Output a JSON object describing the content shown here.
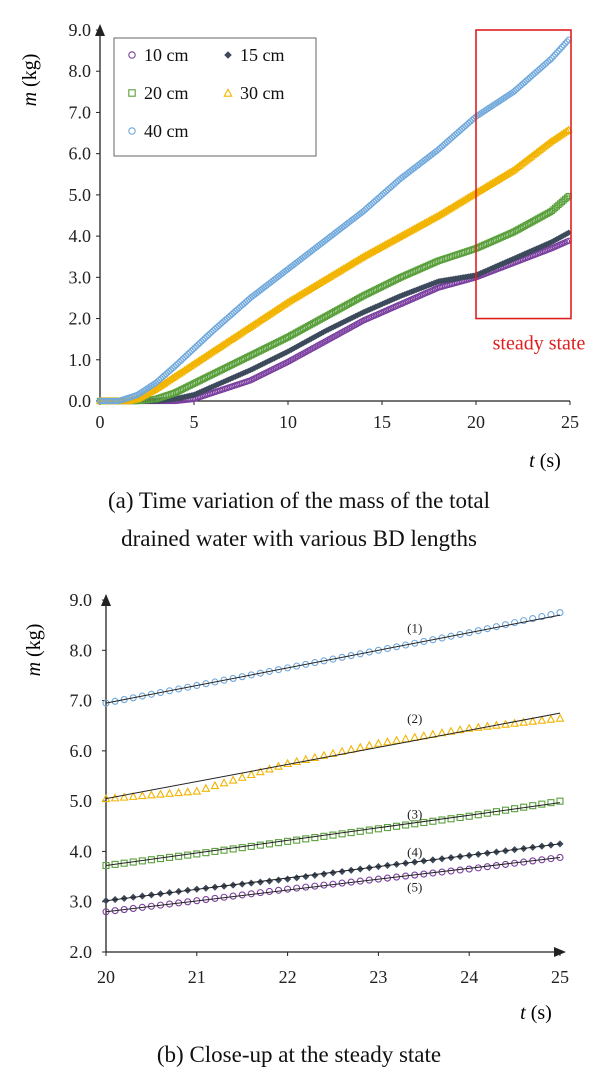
{
  "chart_data": [
    {
      "type": "scatter",
      "panel": "a",
      "xlabel": "t (s)",
      "ylabel": "m (kg)",
      "xlim": [
        0,
        25
      ],
      "ylim": [
        0,
        9
      ],
      "x_ticks": [
        "0",
        "5",
        "10",
        "15",
        "20",
        "25"
      ],
      "y_ticks": [
        "0.0",
        "1.0",
        "2.0",
        "3.0",
        "4.0",
        "5.0",
        "6.0",
        "7.0",
        "8.0",
        "9.0"
      ],
      "legend_placement": "top-left",
      "grid": false,
      "annotation": "steady state",
      "annotation_region": {
        "x": [
          20,
          25
        ],
        "y": [
          2.0,
          9.0
        ]
      },
      "series": [
        {
          "name": "10 cm",
          "marker": "circle",
          "color": "#7b3fa0",
          "points": [
            [
              0,
              0
            ],
            [
              3,
              0
            ],
            [
              4,
              0
            ],
            [
              5,
              0.05
            ],
            [
              6,
              0.2
            ],
            [
              8,
              0.5
            ],
            [
              10,
              0.95
            ],
            [
              12,
              1.45
            ],
            [
              14,
              1.95
            ],
            [
              16,
              2.35
            ],
            [
              18,
              2.75
            ],
            [
              20,
              3.0
            ],
            [
              22,
              3.35
            ],
            [
              24,
              3.7
            ],
            [
              25,
              3.9
            ]
          ]
        },
        {
          "name": "15 cm",
          "marker": "diamond",
          "color": "#3d4a5c",
          "points": [
            [
              0,
              0
            ],
            [
              3,
              0
            ],
            [
              4,
              0.05
            ],
            [
              5,
              0.15
            ],
            [
              6,
              0.35
            ],
            [
              8,
              0.75
            ],
            [
              10,
              1.2
            ],
            [
              12,
              1.7
            ],
            [
              14,
              2.15
            ],
            [
              16,
              2.55
            ],
            [
              18,
              2.9
            ],
            [
              20,
              3.05
            ],
            [
              22,
              3.45
            ],
            [
              24,
              3.85
            ],
            [
              25,
              4.1
            ]
          ]
        },
        {
          "name": "20 cm",
          "marker": "square",
          "color": "#5aa03c",
          "points": [
            [
              0,
              0
            ],
            [
              2,
              0
            ],
            [
              3,
              0.05
            ],
            [
              4,
              0.2
            ],
            [
              6,
              0.65
            ],
            [
              8,
              1.1
            ],
            [
              10,
              1.55
            ],
            [
              12,
              2.05
            ],
            [
              14,
              2.55
            ],
            [
              16,
              3.0
            ],
            [
              18,
              3.4
            ],
            [
              20,
              3.7
            ],
            [
              22,
              4.1
            ],
            [
              24,
              4.6
            ],
            [
              25,
              5.0
            ]
          ]
        },
        {
          "name": "30 cm",
          "marker": "triangle",
          "color": "#f2b400",
          "points": [
            [
              0,
              0
            ],
            [
              1.5,
              0
            ],
            [
              2,
              0.05
            ],
            [
              3,
              0.3
            ],
            [
              4,
              0.6
            ],
            [
              6,
              1.2
            ],
            [
              8,
              1.8
            ],
            [
              10,
              2.4
            ],
            [
              12,
              2.95
            ],
            [
              14,
              3.5
            ],
            [
              16,
              4.0
            ],
            [
              18,
              4.5
            ],
            [
              20,
              5.05
            ],
            [
              22,
              5.6
            ],
            [
              24,
              6.3
            ],
            [
              25,
              6.6
            ]
          ]
        },
        {
          "name": "40 cm",
          "marker": "circle",
          "color": "#6fa8dc",
          "points": [
            [
              0,
              0
            ],
            [
              1,
              0
            ],
            [
              2,
              0.15
            ],
            [
              3,
              0.45
            ],
            [
              4,
              0.85
            ],
            [
              6,
              1.7
            ],
            [
              8,
              2.5
            ],
            [
              10,
              3.2
            ],
            [
              12,
              3.9
            ],
            [
              14,
              4.6
            ],
            [
              16,
              5.4
            ],
            [
              18,
              6.1
            ],
            [
              20,
              6.9
            ],
            [
              22,
              7.5
            ],
            [
              24,
              8.3
            ],
            [
              25,
              8.8
            ]
          ]
        }
      ]
    },
    {
      "type": "scatter",
      "panel": "b",
      "xlabel": "t (s)",
      "ylabel": "m (kg)",
      "xlim": [
        20,
        25
      ],
      "ylim": [
        2,
        9
      ],
      "x_ticks": [
        "20",
        "21",
        "22",
        "23",
        "24",
        "25"
      ],
      "y_ticks": [
        "2.0",
        "3.0",
        "4.0",
        "5.0",
        "6.0",
        "7.0",
        "8.0",
        "9.0"
      ],
      "grid": false,
      "series": [
        {
          "name": "(1)",
          "marker": "circle",
          "color": "#6fa8dc",
          "fit": [
            6.95,
            8.7
          ],
          "points": [
            [
              20,
              6.95
            ],
            [
              21,
              7.3
            ],
            [
              22,
              7.65
            ],
            [
              23,
              8.0
            ],
            [
              24,
              8.35
            ],
            [
              25,
              8.75
            ]
          ]
        },
        {
          "name": "(2)",
          "marker": "triangle",
          "color": "#f2b400",
          "fit": [
            5.05,
            6.75
          ],
          "points": [
            [
              20,
              5.05
            ],
            [
              21,
              5.2
            ],
            [
              22,
              5.75
            ],
            [
              23,
              6.15
            ],
            [
              24,
              6.45
            ],
            [
              25,
              6.65
            ]
          ]
        },
        {
          "name": "(3)",
          "marker": "square",
          "color": "#5aa03c",
          "fit": [
            3.72,
            4.97
          ],
          "points": [
            [
              20,
              3.72
            ],
            [
              21,
              3.95
            ],
            [
              22,
              4.2
            ],
            [
              23,
              4.45
            ],
            [
              24,
              4.7
            ],
            [
              25,
              5.0
            ]
          ]
        },
        {
          "name": "(4)",
          "marker": "diamond",
          "color": "#3d4a5c",
          "fit": [
            3.02,
            4.15
          ],
          "points": [
            [
              20,
              3.02
            ],
            [
              21,
              3.25
            ],
            [
              22,
              3.45
            ],
            [
              23,
              3.7
            ],
            [
              24,
              3.92
            ],
            [
              25,
              4.15
            ]
          ]
        },
        {
          "name": "(5)",
          "marker": "circle",
          "color": "#7b3fa0",
          "fit": [
            2.8,
            3.88
          ],
          "points": [
            [
              20,
              2.8
            ],
            [
              21,
              3.02
            ],
            [
              22,
              3.25
            ],
            [
              23,
              3.45
            ],
            [
              24,
              3.65
            ],
            [
              25,
              3.88
            ]
          ]
        }
      ]
    }
  ],
  "captions": {
    "a_line1": "(a) Time variation of the mass of the total",
    "a_line2": "drained water with various BD lengths",
    "b": "(b) Close-up at the steady state"
  },
  "labels": {
    "m": "m",
    "kg": "(kg)",
    "t": "t",
    "s": "(s)"
  }
}
